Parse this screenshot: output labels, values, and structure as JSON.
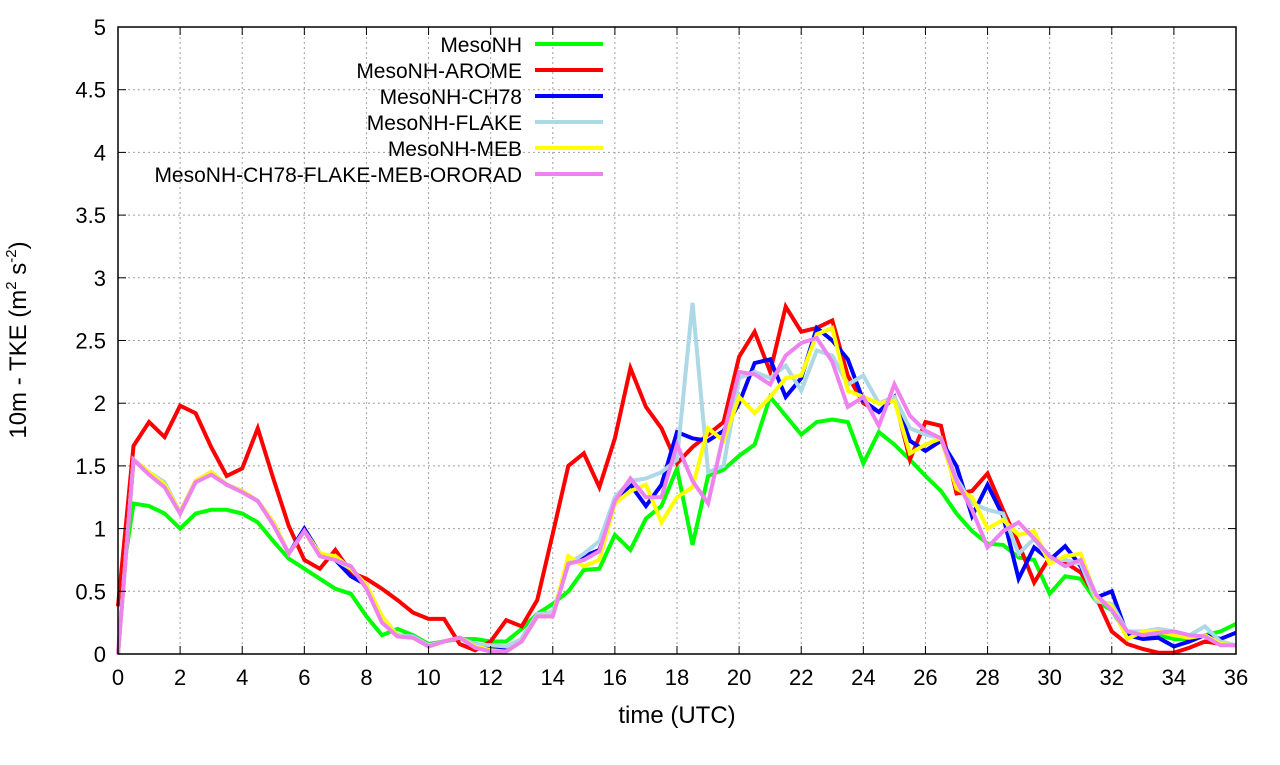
{
  "chart_data": {
    "type": "line",
    "title": "",
    "xlabel": "time (UTC)",
    "ylabel_parts": [
      "10m - TKE (m",
      "2",
      " s",
      "-2",
      ")"
    ],
    "xlim": [
      0,
      36
    ],
    "ylim": [
      0,
      5
    ],
    "xticks": [
      0,
      2,
      4,
      6,
      8,
      10,
      12,
      14,
      16,
      18,
      20,
      22,
      24,
      26,
      28,
      30,
      32,
      34,
      36
    ],
    "yticks": [
      "0",
      "0.5",
      "1",
      "1.5",
      "2",
      "2.5",
      "3",
      "3.5",
      "4",
      "4.5",
      "5"
    ],
    "grid": true,
    "legend_position": "top-left",
    "x_step": 0.5,
    "series": [
      {
        "name": "MesoNH",
        "color": "#00ff00",
        "values": [
          0.38,
          1.2,
          1.18,
          1.12,
          1.0,
          1.12,
          1.15,
          1.15,
          1.12,
          1.05,
          0.9,
          0.76,
          0.68,
          0.6,
          0.52,
          0.48,
          0.3,
          0.15,
          0.2,
          0.15,
          0.08,
          0.1,
          0.12,
          0.12,
          0.1,
          0.1,
          0.2,
          0.32,
          0.4,
          0.5,
          0.67,
          0.68,
          0.95,
          0.83,
          1.08,
          1.18,
          1.48,
          0.87,
          1.42,
          1.47,
          1.58,
          1.67,
          2.05,
          1.9,
          1.75,
          1.85,
          1.87,
          1.85,
          1.52,
          1.77,
          1.67,
          1.55,
          1.42,
          1.3,
          1.12,
          0.98,
          0.88,
          0.87,
          0.77,
          0.75,
          0.48,
          0.62,
          0.6,
          0.42,
          0.35,
          0.15,
          0.13,
          0.15,
          0.12,
          0.12,
          0.15,
          0.18,
          0.24
        ]
      },
      {
        "name": "MesoNH-AROME",
        "color": "#ff0000",
        "values": [
          0.38,
          1.66,
          1.85,
          1.73,
          1.98,
          1.92,
          1.65,
          1.42,
          1.48,
          1.8,
          1.4,
          1.02,
          0.75,
          0.68,
          0.83,
          0.65,
          0.6,
          0.52,
          0.43,
          0.33,
          0.28,
          0.28,
          0.08,
          0.03,
          0.1,
          0.27,
          0.22,
          0.43,
          0.96,
          1.5,
          1.6,
          1.33,
          1.72,
          2.28,
          1.97,
          1.8,
          1.52,
          1.65,
          1.75,
          1.85,
          2.37,
          2.57,
          2.25,
          2.77,
          2.57,
          2.6,
          2.66,
          2.22,
          2.0,
          1.93,
          2.05,
          1.55,
          1.85,
          1.82,
          1.28,
          1.3,
          1.44,
          1.15,
          0.88,
          0.57,
          0.77,
          0.73,
          0.65,
          0.45,
          0.18,
          0.08,
          0.04,
          0.01,
          0.01,
          0.05,
          0.1,
          0.08,
          0.07
        ]
      },
      {
        "name": "MesoNH-CH78",
        "color": "#0000ff",
        "values": [
          0.0,
          1.55,
          1.45,
          1.35,
          1.13,
          1.38,
          1.45,
          1.35,
          1.3,
          1.22,
          1.05,
          0.8,
          1.0,
          0.8,
          0.75,
          0.62,
          0.55,
          0.28,
          0.15,
          0.14,
          0.07,
          0.1,
          0.13,
          0.08,
          0.05,
          0.04,
          0.12,
          0.32,
          0.33,
          0.72,
          0.78,
          0.83,
          1.2,
          1.35,
          1.18,
          1.35,
          1.77,
          1.72,
          1.7,
          1.78,
          2.0,
          2.32,
          2.35,
          2.05,
          2.2,
          2.6,
          2.5,
          2.35,
          2.02,
          1.93,
          2.05,
          1.7,
          1.62,
          1.7,
          1.5,
          1.1,
          1.35,
          1.1,
          0.6,
          0.85,
          0.75,
          0.86,
          0.7,
          0.45,
          0.5,
          0.15,
          0.12,
          0.13,
          0.06,
          0.1,
          0.15,
          0.12,
          0.17
        ]
      },
      {
        "name": "MesoNH-FLAKE",
        "color": "#add8e6",
        "values": [
          0.0,
          1.55,
          1.45,
          1.37,
          1.13,
          1.38,
          1.45,
          1.35,
          1.3,
          1.22,
          1.05,
          0.8,
          0.98,
          0.8,
          0.75,
          0.68,
          0.55,
          0.3,
          0.15,
          0.14,
          0.07,
          0.1,
          0.13,
          0.08,
          0.07,
          0.06,
          0.12,
          0.32,
          0.33,
          0.72,
          0.8,
          0.9,
          1.25,
          1.38,
          1.4,
          1.45,
          1.55,
          2.8,
          1.45,
          1.5,
          2.2,
          2.25,
          2.2,
          2.3,
          2.1,
          2.42,
          2.38,
          2.15,
          2.22,
          2.0,
          2.05,
          1.8,
          1.75,
          1.72,
          1.4,
          1.2,
          1.15,
          1.12,
          0.8,
          0.92,
          0.75,
          0.75,
          0.72,
          0.42,
          0.4,
          0.18,
          0.18,
          0.2,
          0.18,
          0.15,
          0.22,
          0.1,
          0.07
        ]
      },
      {
        "name": "MesoNH-MEB",
        "color": "#ffff00",
        "values": [
          0.0,
          1.55,
          1.45,
          1.35,
          1.13,
          1.38,
          1.45,
          1.35,
          1.3,
          1.22,
          1.05,
          0.8,
          0.98,
          0.8,
          0.78,
          0.68,
          0.55,
          0.3,
          0.14,
          0.13,
          0.06,
          0.1,
          0.13,
          0.06,
          0.03,
          0.02,
          0.1,
          0.3,
          0.3,
          0.78,
          0.7,
          0.75,
          1.2,
          1.3,
          1.35,
          1.05,
          1.25,
          1.33,
          1.8,
          1.7,
          2.05,
          1.92,
          2.05,
          2.2,
          2.22,
          2.55,
          2.6,
          2.1,
          2.05,
          2.0,
          2.02,
          1.6,
          1.67,
          1.72,
          1.32,
          1.25,
          1.0,
          1.07,
          0.95,
          0.98,
          0.72,
          0.78,
          0.8,
          0.45,
          0.38,
          0.12,
          0.18,
          0.18,
          0.15,
          0.13,
          0.15,
          0.08,
          0.07
        ]
      },
      {
        "name": "MesoNH-CH78-FLAKE-MEB-ORORAD",
        "color": "#ee82ee",
        "values": [
          0.0,
          1.55,
          1.43,
          1.33,
          1.12,
          1.37,
          1.43,
          1.35,
          1.29,
          1.22,
          1.03,
          0.8,
          0.98,
          0.78,
          0.75,
          0.7,
          0.52,
          0.25,
          0.14,
          0.13,
          0.06,
          0.1,
          0.13,
          0.05,
          0.02,
          0.02,
          0.1,
          0.3,
          0.3,
          0.72,
          0.75,
          0.82,
          1.22,
          1.4,
          1.25,
          1.25,
          1.67,
          1.38,
          1.2,
          1.75,
          2.25,
          2.23,
          2.15,
          2.38,
          2.48,
          2.52,
          2.33,
          1.97,
          2.05,
          1.82,
          2.15,
          1.9,
          1.78,
          1.72,
          1.38,
          1.15,
          0.85,
          0.98,
          1.05,
          0.92,
          0.78,
          0.7,
          0.75,
          0.47,
          0.35,
          0.18,
          0.15,
          0.17,
          0.18,
          0.15,
          0.14,
          0.07,
          0.07
        ]
      }
    ]
  }
}
